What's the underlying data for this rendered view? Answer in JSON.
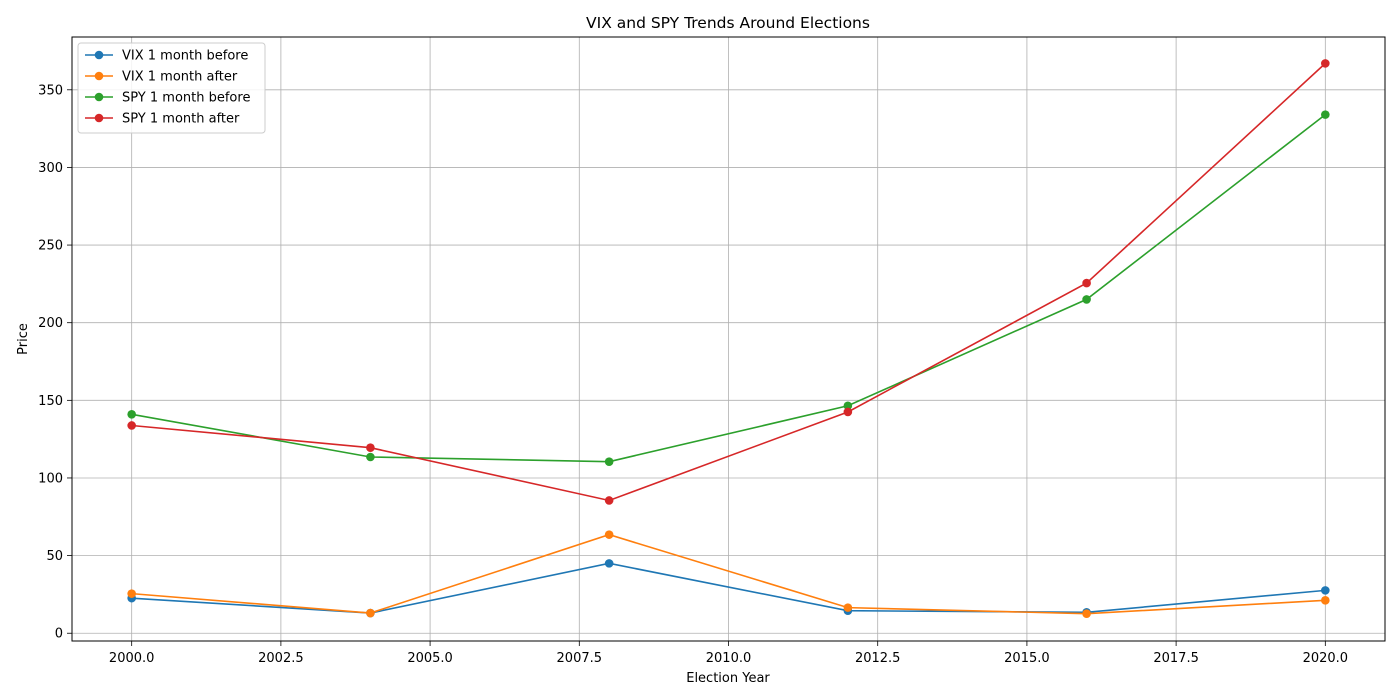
{
  "chart_data": {
    "type": "line",
    "title": "VIX and SPY Trends Around Elections",
    "xlabel": "Election Year",
    "ylabel": "Price",
    "x": [
      2000,
      2004,
      2008,
      2012,
      2016,
      2020
    ],
    "xlim": [
      1999.0,
      2021.0
    ],
    "ylim": [
      -5,
      384
    ],
    "xticks": [
      2000.0,
      2002.5,
      2005.0,
      2007.5,
      2010.0,
      2012.5,
      2015.0,
      2017.5,
      2020.0
    ],
    "xtick_labels": [
      "2000.0",
      "2002.5",
      "2005.0",
      "2007.5",
      "2010.0",
      "2012.5",
      "2015.0",
      "2017.5",
      "2020.0"
    ],
    "yticks": [
      0,
      50,
      100,
      150,
      200,
      250,
      300,
      350
    ],
    "ytick_labels": [
      "0",
      "50",
      "100",
      "150",
      "200",
      "250",
      "300",
      "350"
    ],
    "grid": true,
    "legend_position": "top-left",
    "series": [
      {
        "name": "VIX 1 month before",
        "color": "#1f77b4",
        "values": [
          22.6,
          13.0,
          45.0,
          14.5,
          13.5,
          27.6
        ]
      },
      {
        "name": "VIX 1 month after",
        "color": "#ff7f0e",
        "values": [
          25.5,
          13.0,
          63.5,
          16.5,
          12.6,
          21.2
        ]
      },
      {
        "name": "SPY 1 month before",
        "color": "#2ca02c",
        "values": [
          141.0,
          113.5,
          110.5,
          146.5,
          215.0,
          334.0
        ]
      },
      {
        "name": "SPY 1 month after",
        "color": "#d62728",
        "values": [
          133.8,
          119.5,
          85.5,
          142.5,
          225.5,
          367.0
        ]
      }
    ]
  }
}
